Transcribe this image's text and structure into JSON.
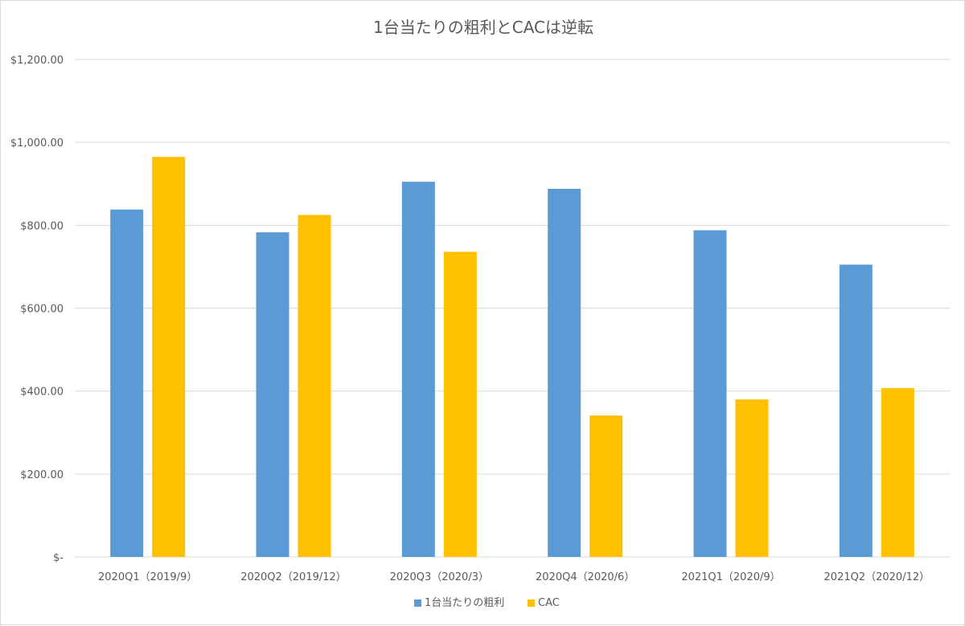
{
  "chart_data": {
    "type": "bar",
    "title": "1台当たりの粗利とCACは逆転",
    "xlabel": "",
    "ylabel": "",
    "categories": [
      "2020Q1（2019/9）",
      "2020Q2（2019/12）",
      "2020Q3（2020/3）",
      "2020Q4（2020/6）",
      "2021Q1（2020/9）",
      "2021Q2（2020/12）"
    ],
    "series": [
      {
        "name": "1台当たりの粗利",
        "color": "#5b9bd5",
        "values": [
          838,
          783,
          905,
          888,
          788,
          705
        ]
      },
      {
        "name": "CAC",
        "color": "#ffc000",
        "values": [
          965,
          825,
          736,
          341,
          380,
          407
        ]
      }
    ],
    "ylim": [
      0,
      1200
    ],
    "y_ticks": [
      0,
      200,
      400,
      600,
      800,
      1000,
      1200
    ],
    "y_tick_labels": [
      "$-",
      "$200.00",
      "$400.00",
      "$600.00",
      "$800.00",
      "$1,000.00",
      "$1,200.00"
    ],
    "grid": true,
    "legend_position": "bottom"
  }
}
